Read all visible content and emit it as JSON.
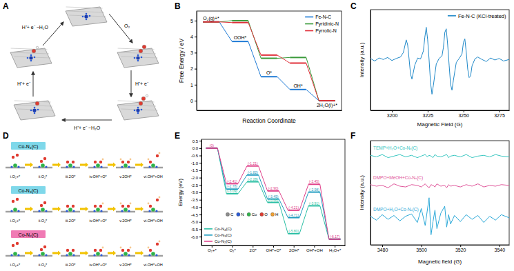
{
  "chart_data": [
    {
      "type": "line",
      "label": "B",
      "y_label": "Free Energy / eV",
      "x_label": "Reaction Coordinate",
      "categories": [
        "O₂(g)+*",
        "OOH*",
        "O*",
        "OH*",
        "2H₂O(l)+*"
      ],
      "series": [
        {
          "name": "Fe-N-C",
          "color": "#1f7bd6",
          "values": [
            4.92,
            3.7,
            1.5,
            0.7,
            0
          ]
        },
        {
          "name": "Pyridinic-N",
          "color": "#3a9a3a",
          "values": [
            4.92,
            5.0,
            2.65,
            2.7,
            0
          ]
        },
        {
          "name": "Pyrrolic-N",
          "color": "#e0303a",
          "values": [
            4.92,
            4.88,
            2.85,
            2.35,
            0
          ]
        }
      ],
      "ylim": [
        -0.6,
        5.6
      ],
      "yticks": [
        0,
        1,
        2,
        3,
        4,
        5
      ],
      "legend": "upper right",
      "tick_labels": "y",
      "line_style": "steps"
    },
    {
      "type": "line",
      "label": "C",
      "x_label": "Magnetic Field (G)",
      "y_label": "Intensity (a.u.)",
      "x": [
        3185,
        3188,
        3191,
        3194,
        3197,
        3200,
        3203,
        3206,
        3208,
        3210,
        3211,
        3212,
        3213,
        3214,
        3216,
        3218,
        3220,
        3222,
        3223,
        3224,
        3225,
        3226,
        3227,
        3228,
        3229,
        3231,
        3233,
        3235,
        3236,
        3237,
        3238,
        3239,
        3240,
        3241,
        3242,
        3243,
        3245,
        3247,
        3249,
        3250,
        3251,
        3252,
        3253,
        3254,
        3255,
        3256,
        3258,
        3260,
        3263,
        3266,
        3269,
        3272,
        3275,
        3278,
        3282
      ],
      "series": [
        {
          "name": "Fe-N-C (KCl-treated)",
          "color": "#1e88c8",
          "values": [
            0.3,
            -0.2,
            0.4,
            0.1,
            0.5,
            -0.1,
            0.3,
            0.6,
            1.5,
            4.0,
            3.0,
            0.2,
            -2.8,
            -3.8,
            -1.0,
            0.4,
            0.2,
            1.8,
            4.5,
            6.5,
            4.0,
            0.0,
            -4.5,
            -6.8,
            -5.0,
            -0.8,
            0.3,
            0.8,
            2.5,
            5.5,
            6.2,
            3.0,
            -1.0,
            -4.8,
            -6.0,
            -4.0,
            -0.5,
            0.3,
            1.2,
            3.5,
            4.2,
            1.5,
            -1.8,
            -3.5,
            -3.2,
            -1.2,
            0.2,
            0.6,
            0.1,
            -0.3,
            0.4,
            0.0,
            0.3,
            -0.2,
            0.1
          ]
        }
      ],
      "xlim": [
        3185,
        3282
      ],
      "xticks": [
        3200,
        3225,
        3250,
        3275
      ],
      "ylim": [
        -10,
        10
      ],
      "tick_labels": "x",
      "legend": "upper right"
    },
    {
      "type": "line",
      "label": "E",
      "y_label": "Energy (eV)",
      "categories": [
        "O₂+*",
        "O₂*",
        "2O*",
        "OH*+O*",
        "2OH*",
        "OH*+OH",
        "H₂O+*"
      ],
      "series": [
        {
          "name": "Co-N₄(C)",
          "color": "#2bbfa4",
          "values": [
            0,
            -3.09,
            -2.28,
            -3.68,
            -5.8,
            -3.91,
            -6.17
          ],
          "value_labels": [
            null,
            "(-3.09)",
            "(-2.28)",
            "(-3.68)",
            "(-5.80)",
            "(-3.91)",
            null
          ]
        },
        {
          "name": "Co-N₃(C)",
          "color": "#1f9cc0",
          "values": [
            0,
            -2.78,
            -1.82,
            -3.45,
            -4.71,
            -2.98,
            -6.17
          ],
          "value_labels": [
            null,
            "(-2.78)",
            "(-1.82)",
            "(-3.45)",
            "(-4.71)",
            "(-2.98)",
            null
          ]
        },
        {
          "name": "Co-N₂(C)",
          "color": "#e0408a",
          "values": [
            0,
            -2.41,
            -1.21,
            -2.9,
            -4.21,
            -2.45,
            -6.17
          ],
          "value_labels": [
            "(0)",
            "(-2.41)",
            "(-1.21)",
            "(-2.90)",
            "(-4.21)",
            "(-2.45)",
            "(-6.17)"
          ]
        }
      ],
      "ylim": [
        -6.6,
        0.6
      ],
      "yticks": [
        0.5,
        {
          "value": 0,
          "label": "0.0"
        },
        -0.5,
        {
          "value": -1,
          "label": "-1.0"
        },
        -1.5,
        {
          "value": -2,
          "label": "-2.0"
        },
        -2.5,
        {
          "value": -3,
          "label": "-3.0"
        },
        -3.5,
        {
          "value": -4,
          "label": "-4.0"
        },
        -4.5,
        {
          "value": -5,
          "label": "-5.0"
        },
        -5.5,
        {
          "value": -6,
          "label": "-6.0"
        }
      ],
      "data_labels": true,
      "legend": "lower left",
      "line_style": "steps",
      "annotations": [
        {
          "text": "C",
          "color": "#8c8c8c"
        },
        {
          "text": "N",
          "color": "#2a5bd7"
        },
        {
          "text": "Co",
          "color": "#2fb34a"
        },
        {
          "text": "O",
          "color": "#e03a2f"
        },
        {
          "text": "H",
          "color": "#f0a030"
        }
      ]
    },
    {
      "type": "line",
      "label": "F",
      "x_label": "Magnetic field (G)",
      "y_label": "Intensity (a.u.)",
      "x": [
        3474,
        3477,
        3480,
        3483,
        3486,
        3489,
        3492,
        3495,
        3498,
        3500,
        3502,
        3503,
        3504,
        3505,
        3506,
        3507,
        3508,
        3510,
        3512,
        3513,
        3514,
        3515,
        3517,
        3520,
        3523,
        3526,
        3529,
        3532,
        3535,
        3538,
        3541,
        3545
      ],
      "series": [
        {
          "name": "TEMP+H₂O+Co-Nₓ(C)",
          "color": "#35c6c0",
          "values": [
            8.1,
            7.9,
            8.2,
            7.8,
            8.0,
            8.2,
            7.9,
            8.1,
            7.8,
            8.0,
            8.2,
            7.9,
            8.1,
            8.0,
            7.8,
            8.2,
            8.0,
            7.9,
            8.1,
            8.2,
            7.8,
            8.0,
            8.1,
            7.9,
            8.2,
            7.8,
            8.0,
            8.1,
            7.9,
            8.2,
            8.0,
            7.9
          ]
        },
        {
          "name": "DMPO+MeOH+Co-Nₓ(C)",
          "color": "#e0559a",
          "values": [
            4.3,
            4.1,
            4.2,
            3.9,
            4.4,
            4.1,
            4.0,
            4.3,
            4.2,
            4.0,
            4.4,
            4.1,
            3.9,
            4.3,
            4.2,
            4.0,
            4.4,
            4.1,
            4.2,
            3.9,
            4.3,
            4.1,
            4.2,
            4.0,
            4.3,
            4.1,
            4.4,
            4.0,
            4.2,
            4.1,
            4.3,
            4.2
          ]
        },
        {
          "name": "DMPO+H₂O+Co-Nₓ(C)",
          "color": "#2aa8d8",
          "values": [
            0.2,
            -0.3,
            0.4,
            -0.2,
            0.3,
            -0.4,
            0.2,
            0.5,
            -0.6,
            1.2,
            -1.0,
            0.8,
            2.6,
            -2.2,
            -0.5,
            1.0,
            -1.4,
            0.6,
            1.5,
            -1.2,
            0.4,
            -0.8,
            0.3,
            -0.5,
            0.4,
            -0.2,
            0.3,
            -0.6,
            0.2,
            -0.3,
            0.4,
            0.0
          ]
        }
      ],
      "xlim": [
        3474,
        3545
      ],
      "xticks": [
        3480,
        3500,
        3520,
        3540
      ],
      "ylim": [
        -3.5,
        10
      ],
      "tick_labels": "x"
    }
  ],
  "diagram_a": {
    "label": "A",
    "steps": [
      "O₂",
      "H⁺+ e⁻",
      "H⁺+ e⁻ −H₂O",
      "H⁺+ e⁻",
      "H⁺+ e⁻ −H₂O"
    ]
  },
  "diagram_d": {
    "label": "D",
    "rows": [
      {
        "name": "Co-N₄(C)",
        "color": "#7fd8ea",
        "steps": [
          "i.O₂+*",
          "ii.O₂*",
          "iii.2O*",
          "iv.OH*+O*",
          "v.2OH*",
          "vi.OH*+OH"
        ]
      },
      {
        "name": "Co-N₃(C)",
        "color": "#7fd8ea",
        "steps": [
          "i.O₂+*",
          "ii.O₂*",
          "iii.2O*",
          "iv.OH*+O*",
          "v.2OH*",
          "vi.OH*+OH"
        ]
      },
      {
        "name": "Co-N₂(C)",
        "color": "#f07ab4",
        "steps": [
          "i.O₂+*",
          "ii.O₂*",
          "iii.2O*",
          "iv.OH*+O*",
          "v.2OH*",
          "vi.OH*+OH"
        ]
      }
    ]
  }
}
